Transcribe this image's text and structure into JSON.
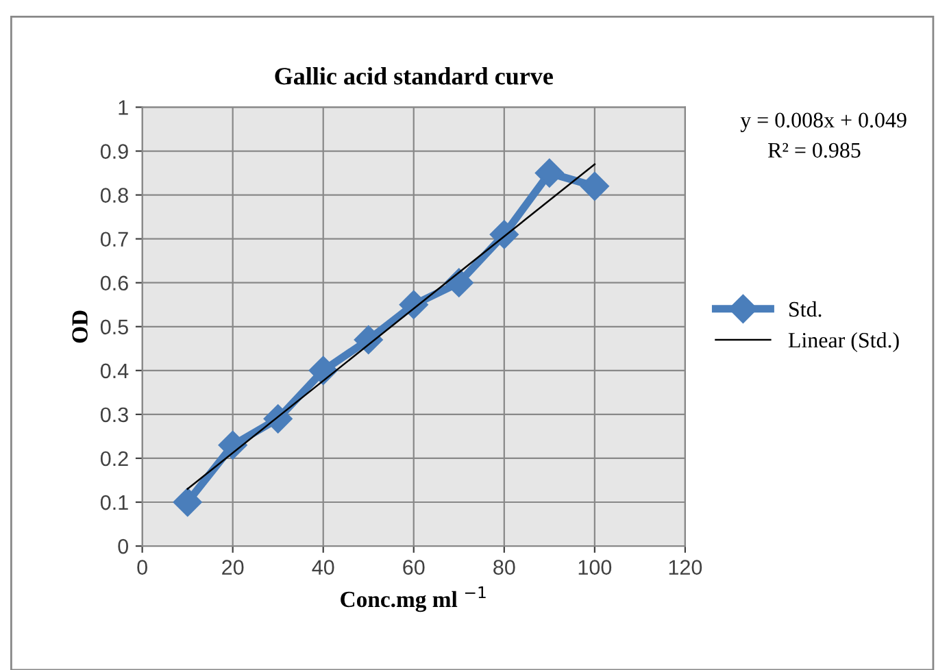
{
  "chart_data": {
    "type": "line",
    "title": "Gallic acid standard curve",
    "xlabel": "Conc.mg ml $^{−1}$",
    "ylabel": "OD",
    "series": [
      {
        "name": "Std.",
        "color": "#4a7ebb",
        "x": [
          10,
          20,
          30,
          40,
          50,
          60,
          70,
          80,
          90,
          100
        ],
        "values": [
          0.1,
          0.23,
          0.29,
          0.4,
          0.47,
          0.55,
          0.6,
          0.71,
          0.85,
          0.82
        ],
        "marker": "diamond"
      },
      {
        "name": "Linear (Std.)",
        "color": "#000000",
        "x": [
          10,
          100
        ],
        "values": [
          0.13,
          0.87
        ],
        "marker": "none"
      }
    ],
    "annotations": [
      "y = 0.008x + 0.049",
      "R² = 0.985"
    ],
    "xlim": [
      0,
      120
    ],
    "xticks": [
      0,
      20,
      40,
      60,
      80,
      100,
      120
    ],
    "ylim": [
      0,
      1
    ],
    "yticks": [
      0,
      0.1,
      0.2,
      0.3,
      0.4,
      0.5,
      0.6,
      0.7,
      0.8,
      0.9,
      1
    ],
    "grid": true,
    "legend": "right",
    "line_style": "solid"
  }
}
